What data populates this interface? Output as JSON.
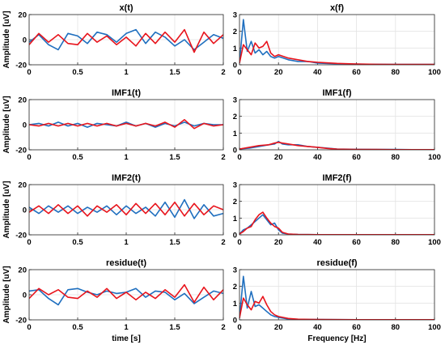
{
  "chart_data": [
    {
      "type": "line",
      "title": "x(t)",
      "ylabel": "Amplitude [uV]",
      "xlabel": "",
      "xlim": [
        0,
        2
      ],
      "ylim": [
        -20,
        20
      ],
      "xticks": [
        "0",
        "0.5",
        "1",
        "1.5",
        "2"
      ],
      "yticks": [
        "-20",
        "0",
        "20"
      ],
      "grid": true,
      "series": [
        {
          "color": "#1f6fbf",
          "x": [
            0,
            0.1,
            0.2,
            0.3,
            0.4,
            0.5,
            0.6,
            0.7,
            0.8,
            0.9,
            1.0,
            1.1,
            1.2,
            1.3,
            1.4,
            1.5,
            1.6,
            1.7,
            1.8,
            1.9,
            2.0
          ],
          "values": [
            -2,
            4,
            -4,
            -8,
            5,
            3,
            -3,
            6,
            4,
            -2,
            5,
            8,
            -3,
            6,
            2,
            -5,
            0,
            -8,
            -2,
            4,
            1
          ]
        },
        {
          "color": "#e8141c",
          "x": [
            0,
            0.1,
            0.2,
            0.3,
            0.4,
            0.5,
            0.6,
            0.7,
            0.8,
            0.9,
            1.0,
            1.1,
            1.2,
            1.3,
            1.4,
            1.5,
            1.6,
            1.7,
            1.8,
            1.9,
            2.0
          ],
          "values": [
            -4,
            5,
            -2,
            4,
            -3,
            -4,
            5,
            -2,
            3,
            -4,
            2,
            -5,
            5,
            -3,
            6,
            -2,
            8,
            -10,
            6,
            -3,
            4
          ]
        }
      ]
    },
    {
      "type": "line",
      "title": "x(f)",
      "ylabel": "",
      "xlabel": "",
      "xlim": [
        0,
        100
      ],
      "ylim": [
        0,
        3
      ],
      "xticks": [
        "0",
        "20",
        "40",
        "60",
        "80",
        "100"
      ],
      "yticks": [
        "0",
        "1",
        "2",
        "3"
      ],
      "grid": true,
      "series": [
        {
          "color": "#1f6fbf",
          "x": [
            0,
            2,
            4,
            6,
            8,
            10,
            12,
            14,
            16,
            18,
            20,
            25,
            30,
            35,
            40,
            50,
            60,
            70,
            80,
            90,
            100
          ],
          "values": [
            0.1,
            2.7,
            0.8,
            1.4,
            0.7,
            0.9,
            0.6,
            0.8,
            0.5,
            0.4,
            0.5,
            0.3,
            0.2,
            0.2,
            0.1,
            0.06,
            0.04,
            0.03,
            0.02,
            0.02,
            0.02
          ]
        },
        {
          "color": "#e8141c",
          "x": [
            0,
            2,
            4,
            6,
            8,
            10,
            12,
            14,
            16,
            18,
            20,
            25,
            30,
            35,
            40,
            50,
            60,
            70,
            80,
            90,
            100
          ],
          "values": [
            0.1,
            1.2,
            0.9,
            0.6,
            1.3,
            1.0,
            1.1,
            1.4,
            0.7,
            0.5,
            0.6,
            0.4,
            0.3,
            0.2,
            0.15,
            0.08,
            0.05,
            0.03,
            0.02,
            0.02,
            0.02
          ]
        }
      ]
    },
    {
      "type": "line",
      "title": "IMF1(t)",
      "ylabel": "Amplitude [uV]",
      "xlabel": "",
      "xlim": [
        0,
        2
      ],
      "ylim": [
        -20,
        20
      ],
      "xticks": [
        "0",
        "0.5",
        "1",
        "1.5",
        "2"
      ],
      "yticks": [
        "-20",
        "0",
        "20"
      ],
      "grid": true,
      "series": [
        {
          "color": "#1f6fbf",
          "x": [
            0,
            0.1,
            0.2,
            0.3,
            0.4,
            0.5,
            0.6,
            0.7,
            0.8,
            0.9,
            1.0,
            1.1,
            1.2,
            1.3,
            1.4,
            1.5,
            1.6,
            1.7,
            1.8,
            1.9,
            2.0
          ],
          "values": [
            0,
            1,
            -1,
            2,
            -1,
            1,
            -2,
            1,
            0,
            -1,
            2,
            -1,
            1,
            -2,
            1,
            -1,
            2,
            -1,
            1,
            0,
            0
          ]
        },
        {
          "color": "#e8141c",
          "x": [
            0,
            0.1,
            0.2,
            0.3,
            0.4,
            0.5,
            0.6,
            0.7,
            0.8,
            0.9,
            1.0,
            1.1,
            1.2,
            1.3,
            1.4,
            1.5,
            1.6,
            1.7,
            1.8,
            1.9,
            2.0
          ],
          "values": [
            0,
            -1,
            1,
            -1,
            1,
            -1,
            1,
            -1,
            1,
            -1,
            1,
            -1,
            1,
            -1,
            2,
            -2,
            4,
            -3,
            1,
            -1,
            0
          ]
        }
      ]
    },
    {
      "type": "line",
      "title": "IMF1(f)",
      "ylabel": "",
      "xlabel": "",
      "xlim": [
        0,
        100
      ],
      "ylim": [
        0,
        3
      ],
      "xticks": [
        "0",
        "20",
        "40",
        "60",
        "80",
        "100"
      ],
      "yticks": [
        "0",
        "1",
        "2",
        "3"
      ],
      "grid": true,
      "series": [
        {
          "color": "#1f6fbf",
          "x": [
            0,
            5,
            10,
            15,
            18,
            20,
            22,
            25,
            30,
            35,
            40,
            45,
            50,
            60,
            70,
            80,
            90,
            100
          ],
          "values": [
            0.05,
            0.1,
            0.2,
            0.3,
            0.35,
            0.5,
            0.35,
            0.3,
            0.3,
            0.2,
            0.15,
            0.1,
            0.05,
            0.03,
            0.02,
            0.02,
            0.01,
            0.01
          ]
        },
        {
          "color": "#e8141c",
          "x": [
            0,
            5,
            10,
            15,
            18,
            20,
            22,
            25,
            30,
            35,
            40,
            45,
            50,
            60,
            70,
            80,
            90,
            100
          ],
          "values": [
            0.05,
            0.15,
            0.25,
            0.3,
            0.4,
            0.45,
            0.4,
            0.35,
            0.25,
            0.2,
            0.15,
            0.08,
            0.04,
            0.02,
            0.02,
            0.01,
            0.01,
            0.01
          ]
        }
      ]
    },
    {
      "type": "line",
      "title": "IMF2(t)",
      "ylabel": "Amplitude [uV]",
      "xlabel": "",
      "xlim": [
        0,
        2
      ],
      "ylim": [
        -20,
        20
      ],
      "xticks": [
        "0",
        "0.5",
        "1",
        "1.5",
        "2"
      ],
      "yticks": [
        "-20",
        "0",
        "20"
      ],
      "grid": true,
      "series": [
        {
          "color": "#1f6fbf",
          "x": [
            0,
            0.1,
            0.2,
            0.3,
            0.4,
            0.5,
            0.6,
            0.7,
            0.8,
            0.9,
            1.0,
            1.1,
            1.2,
            1.3,
            1.4,
            1.5,
            1.6,
            1.7,
            1.8,
            1.9,
            2.0
          ],
          "values": [
            2,
            -3,
            3,
            -2,
            3,
            -3,
            2,
            -2,
            3,
            -4,
            3,
            -3,
            2,
            -5,
            6,
            -6,
            8,
            -7,
            4,
            -5,
            -3
          ]
        },
        {
          "color": "#e8141c",
          "x": [
            0,
            0.1,
            0.2,
            0.3,
            0.4,
            0.5,
            0.6,
            0.7,
            0.8,
            0.9,
            1.0,
            1.1,
            1.2,
            1.3,
            1.4,
            1.5,
            1.6,
            1.7,
            1.8,
            1.9,
            2.0
          ],
          "values": [
            -2,
            3,
            -3,
            4,
            -3,
            3,
            -5,
            3,
            -2,
            4,
            -4,
            5,
            -3,
            5,
            -4,
            6,
            -5,
            5,
            -4,
            3,
            0
          ]
        }
      ]
    },
    {
      "type": "line",
      "title": "IMF2(f)",
      "ylabel": "",
      "xlabel": "",
      "xlim": [
        0,
        100
      ],
      "ylim": [
        0,
        3
      ],
      "xticks": [
        "0",
        "20",
        "40",
        "60",
        "80",
        "100"
      ],
      "yticks": [
        "0",
        "1",
        "2",
        "3"
      ],
      "grid": true,
      "series": [
        {
          "color": "#1f6fbf",
          "x": [
            0,
            2,
            4,
            6,
            8,
            10,
            12,
            14,
            16,
            18,
            20,
            22,
            25,
            30,
            40,
            60,
            80,
            100
          ],
          "values": [
            0.05,
            0.3,
            0.4,
            0.6,
            0.8,
            1.0,
            1.2,
            0.9,
            0.6,
            0.7,
            0.3,
            0.1,
            0.05,
            0.02,
            0.01,
            0.01,
            0.01,
            0.01
          ]
        },
        {
          "color": "#e8141c",
          "x": [
            0,
            2,
            4,
            6,
            8,
            10,
            12,
            14,
            16,
            18,
            20,
            22,
            25,
            30,
            40,
            60,
            80,
            100
          ],
          "values": [
            0.05,
            0.2,
            0.4,
            0.5,
            0.9,
            1.2,
            1.35,
            1.0,
            0.7,
            0.5,
            0.4,
            0.15,
            0.05,
            0.02,
            0.01,
            0.01,
            0.01,
            0.01
          ]
        }
      ]
    },
    {
      "type": "line",
      "title": "residue(t)",
      "ylabel": "Amplitude [uV]",
      "xlabel": "time [s]",
      "xlim": [
        0,
        2
      ],
      "ylim": [
        -20,
        20
      ],
      "xticks": [
        "0",
        "0.5",
        "1",
        "1.5",
        "2"
      ],
      "yticks": [
        "-20",
        "0",
        "20"
      ],
      "grid": true,
      "series": [
        {
          "color": "#1f6fbf",
          "x": [
            0,
            0.1,
            0.2,
            0.3,
            0.4,
            0.5,
            0.6,
            0.7,
            0.8,
            0.9,
            1.0,
            1.1,
            1.2,
            1.3,
            1.4,
            1.5,
            1.6,
            1.7,
            1.8,
            1.9,
            2.0
          ],
          "values": [
            3,
            4,
            -3,
            -8,
            4,
            5,
            2,
            0,
            3,
            1,
            2,
            5,
            -2,
            3,
            2,
            -4,
            1,
            -7,
            -2,
            3,
            1
          ]
        },
        {
          "color": "#e8141c",
          "x": [
            0,
            0.1,
            0.2,
            0.3,
            0.4,
            0.5,
            0.6,
            0.7,
            0.8,
            0.9,
            1.0,
            1.1,
            1.2,
            1.3,
            1.4,
            1.5,
            1.6,
            1.7,
            1.8,
            1.9,
            2.0
          ],
          "values": [
            -3,
            5,
            0,
            4,
            -2,
            -3,
            3,
            -2,
            5,
            -3,
            2,
            -4,
            2,
            -3,
            4,
            -2,
            8,
            -6,
            6,
            -4,
            4
          ]
        }
      ]
    },
    {
      "type": "line",
      "title": "residue(f)",
      "ylabel": "",
      "xlabel": "Frequency [Hz]",
      "xlim": [
        0,
        100
      ],
      "ylim": [
        0,
        3
      ],
      "xticks": [
        "0",
        "20",
        "40",
        "60",
        "80",
        "100"
      ],
      "yticks": [
        "0",
        "1",
        "2",
        "3"
      ],
      "grid": true,
      "series": [
        {
          "color": "#1f6fbf",
          "x": [
            0,
            2,
            4,
            6,
            8,
            10,
            12,
            14,
            16,
            18,
            20,
            25,
            30,
            40,
            60,
            80,
            100
          ],
          "values": [
            0.1,
            2.6,
            0.7,
            1.7,
            0.8,
            0.9,
            0.7,
            0.5,
            0.3,
            0.2,
            0.15,
            0.05,
            0.03,
            0.02,
            0.01,
            0.01,
            0.01
          ]
        },
        {
          "color": "#e8141c",
          "x": [
            0,
            2,
            4,
            6,
            8,
            10,
            12,
            14,
            16,
            18,
            20,
            25,
            30,
            40,
            60,
            80,
            100
          ],
          "values": [
            0.1,
            1.3,
            0.9,
            0.6,
            1.1,
            1.0,
            1.4,
            0.9,
            0.5,
            0.3,
            0.2,
            0.08,
            0.04,
            0.02,
            0.01,
            0.01,
            0.01
          ]
        }
      ]
    }
  ]
}
